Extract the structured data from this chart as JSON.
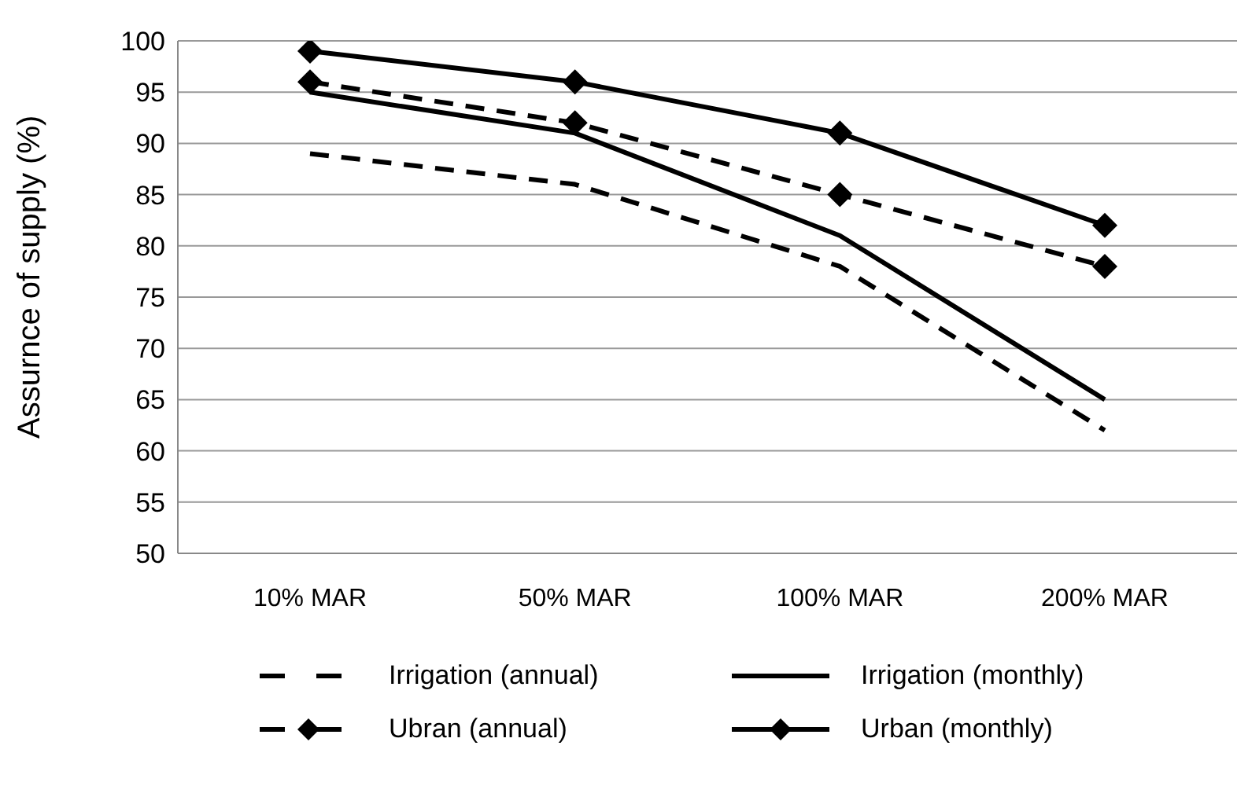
{
  "chart_data": {
    "type": "line",
    "ylabel": "Assurnce of supply (%)",
    "categories": [
      "10% MAR",
      "50% MAR",
      "100% MAR",
      "200% MAR"
    ],
    "series": [
      {
        "name": "Irrigation (annual)",
        "color": "#000000",
        "line_style": "dashed",
        "marker": "none",
        "values": [
          89,
          86,
          78,
          62
        ]
      },
      {
        "name": "Irrigation (monthly)",
        "color": "#000000",
        "line_style": "solid",
        "marker": "none",
        "values": [
          95,
          91,
          81,
          65
        ]
      },
      {
        "name": "Ubran (annual)",
        "color": "#000000",
        "line_style": "dashed",
        "marker": "diamond",
        "values": [
          96,
          92,
          85,
          78
        ]
      },
      {
        "name": "Urban (monthly)",
        "color": "#000000",
        "line_style": "solid",
        "marker": "diamond",
        "values": [
          99,
          96,
          91,
          82
        ]
      }
    ],
    "ylim": [
      50,
      100
    ],
    "yticks": [
      50,
      55,
      60,
      65,
      70,
      75,
      80,
      85,
      90,
      95,
      100
    ],
    "grid": "y",
    "legend": "bottom"
  }
}
